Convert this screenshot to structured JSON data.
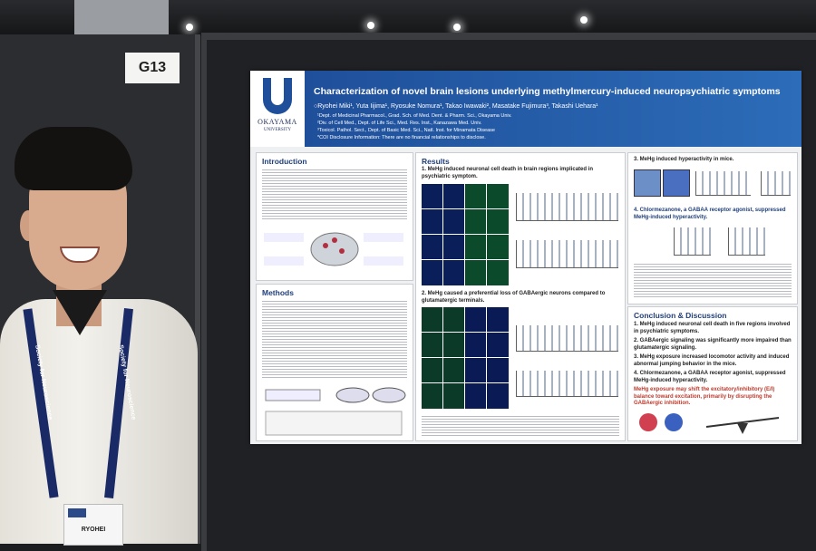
{
  "booth_sign": "G13",
  "poster": {
    "logo": {
      "name": "OKAYAMA",
      "sub": "UNIVERSITY"
    },
    "title": "Characterization of novel brain lesions underlying methylmercury-induced neuropsychiatric symptoms",
    "authors": "○Ryohei Miki¹, Yuta Iijima¹, Ryosuke Nomura¹, Takao Iwawaki², Masatake Fujimura³, Takashi Uehara¹",
    "affiliations": [
      "¹Dept. of Medicinal Pharmacol., Grad. Sch. of Med. Dent. & Pharm. Sci., Okayama Univ.",
      "²Div. of Cell Med., Dept. of Life Sci., Med. Res. Inst., Kanazawa Med. Univ.",
      "³Toxicol. Pathol. Sect., Dept. of Basic Med. Sci., Natl. Inst. for Minamata Disease",
      "*COI Disclosure Information: There are no financial relationships to disclose."
    ],
    "introduction": {
      "heading": "Introduction"
    },
    "methods": {
      "heading": "Methods"
    },
    "results": {
      "heading": "Results",
      "findings": [
        "1. MeHg induced neuronal cell death in brain regions implicated in psychiatric symptom.",
        "2. MeHg caused a preferential loss of GABAergic neurons compared to glutamatergic terminals.",
        "3. MeHg induced hyperactivity in mice.",
        "4. Chlormezanone, a GABAA receptor agonist, suppressed MeHg-induced hyperactivity."
      ]
    },
    "conclusion": {
      "heading": "Conclusion & Discussion",
      "items": [
        "1. MeHg induced neuronal cell death in five regions involved in psychiatric symptoms.",
        "2. GABAergic signaling was significantly more impaired than glutamatergic signaling.",
        "3. MeHg exposure increased locomotor activity and induced abnormal jumping behavior in the mice.",
        "4. Chlormezanone, a GABAA receptor agonist, suppressed MeHg-induced hyperactivity."
      ],
      "note": "MeHg exposure may shift the excitatory/inhibitory (E/I) balance toward excitation, primarily by disrupting the GABAergic inhibition."
    }
  },
  "lanyard_text": "Society for Neuroscience",
  "badge_name": "RYOHEI"
}
